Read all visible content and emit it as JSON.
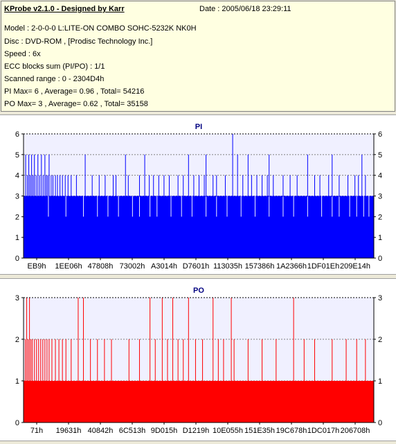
{
  "header": {
    "title": "KProbe v2.1.0 - Designed by Karr",
    "date": "Date : 2005/06/18 23:29:11",
    "lines": [
      "Model : 2-0-0-0 L:LITE-ON COMBO SOHC-5232K NK0H",
      "Disc : DVD-ROM ,  [Prodisc Technology Inc.]",
      "Speed : 6x",
      "ECC blocks sum (PI/PO) : 1/1",
      "Scanned range : 0 - 2304D4h",
      "PI Max= 6 , Average= 0.96 , Total= 54216",
      "PO Max= 3 , Average= 0.62 , Total= 35158"
    ]
  },
  "colors": {
    "plot_bg": "#f0f0ff",
    "pi_fill": "#0000ff",
    "po_fill": "#ff0000",
    "title": "#000080",
    "grid": "#808080"
  },
  "chart_data": [
    {
      "type": "bar",
      "title": "PI",
      "ylim": [
        0,
        6
      ],
      "yticks": [
        0,
        1,
        2,
        3,
        4,
        5,
        6
      ],
      "xtick_labels": [
        "EB9h",
        "1EE06h",
        "47808h",
        "73002h",
        "A3014h",
        "D7601h",
        "113035h",
        "157386h",
        "1A2366h",
        "1DF01Eh",
        "209E14h"
      ],
      "grid": true,
      "baseline": 3,
      "spikes": [
        {
          "x": 0.005,
          "v": 5
        },
        {
          "x": 0.01,
          "v": 4
        },
        {
          "x": 0.014,
          "v": 5
        },
        {
          "x": 0.018,
          "v": 4
        },
        {
          "x": 0.022,
          "v": 5
        },
        {
          "x": 0.026,
          "v": 4
        },
        {
          "x": 0.03,
          "v": 5
        },
        {
          "x": 0.035,
          "v": 4
        },
        {
          "x": 0.04,
          "v": 5
        },
        {
          "x": 0.045,
          "v": 4
        },
        {
          "x": 0.05,
          "v": 5
        },
        {
          "x": 0.055,
          "v": 4
        },
        {
          "x": 0.06,
          "v": 5
        },
        {
          "x": 0.064,
          "v": 4
        },
        {
          "x": 0.068,
          "v": 4
        },
        {
          "x": 0.072,
          "v": 5
        },
        {
          "x": 0.078,
          "v": 4
        },
        {
          "x": 0.083,
          "v": 4
        },
        {
          "x": 0.09,
          "v": 4
        },
        {
          "x": 0.096,
          "v": 4
        },
        {
          "x": 0.103,
          "v": 4
        },
        {
          "x": 0.11,
          "v": 4
        },
        {
          "x": 0.118,
          "v": 4
        },
        {
          "x": 0.126,
          "v": 4
        },
        {
          "x": 0.135,
          "v": 4
        },
        {
          "x": 0.15,
          "v": 4
        },
        {
          "x": 0.175,
          "v": 5
        },
        {
          "x": 0.195,
          "v": 4
        },
        {
          "x": 0.215,
          "v": 4
        },
        {
          "x": 0.232,
          "v": 4
        },
        {
          "x": 0.255,
          "v": 4
        },
        {
          "x": 0.263,
          "v": 4
        },
        {
          "x": 0.29,
          "v": 5
        },
        {
          "x": 0.298,
          "v": 4
        },
        {
          "x": 0.33,
          "v": 4
        },
        {
          "x": 0.345,
          "v": 5
        },
        {
          "x": 0.358,
          "v": 4
        },
        {
          "x": 0.37,
          "v": 4
        },
        {
          "x": 0.385,
          "v": 4
        },
        {
          "x": 0.4,
          "v": 4
        },
        {
          "x": 0.415,
          "v": 4
        },
        {
          "x": 0.44,
          "v": 4
        },
        {
          "x": 0.455,
          "v": 4
        },
        {
          "x": 0.47,
          "v": 5
        },
        {
          "x": 0.485,
          "v": 4
        },
        {
          "x": 0.5,
          "v": 4
        },
        {
          "x": 0.515,
          "v": 4
        },
        {
          "x": 0.52,
          "v": 5
        },
        {
          "x": 0.54,
          "v": 4
        },
        {
          "x": 0.55,
          "v": 4
        },
        {
          "x": 0.575,
          "v": 4
        },
        {
          "x": 0.596,
          "v": 6
        },
        {
          "x": 0.61,
          "v": 5
        },
        {
          "x": 0.625,
          "v": 4
        },
        {
          "x": 0.64,
          "v": 5
        },
        {
          "x": 0.65,
          "v": 4
        },
        {
          "x": 0.665,
          "v": 4
        },
        {
          "x": 0.68,
          "v": 4
        },
        {
          "x": 0.695,
          "v": 4
        },
        {
          "x": 0.7,
          "v": 5
        },
        {
          "x": 0.712,
          "v": 4
        },
        {
          "x": 0.74,
          "v": 4
        },
        {
          "x": 0.76,
          "v": 4
        },
        {
          "x": 0.78,
          "v": 4
        },
        {
          "x": 0.81,
          "v": 5
        },
        {
          "x": 0.83,
          "v": 4
        },
        {
          "x": 0.845,
          "v": 4
        },
        {
          "x": 0.87,
          "v": 4
        },
        {
          "x": 0.88,
          "v": 5
        },
        {
          "x": 0.9,
          "v": 4
        },
        {
          "x": 0.925,
          "v": 4
        },
        {
          "x": 0.945,
          "v": 4
        },
        {
          "x": 0.955,
          "v": 4
        },
        {
          "x": 0.965,
          "v": 5
        },
        {
          "x": 0.975,
          "v": 4
        }
      ],
      "dips": [
        0.07,
        0.12,
        0.17,
        0.21,
        0.24,
        0.27,
        0.31,
        0.33,
        0.36,
        0.38,
        0.42,
        0.45,
        0.48,
        0.52,
        0.55,
        0.58,
        0.62,
        0.66,
        0.7,
        0.74,
        0.77,
        0.81,
        0.85,
        0.88,
        0.9,
        0.93,
        0.95,
        0.97,
        0.985
      ]
    },
    {
      "type": "bar",
      "title": "PO",
      "ylim": [
        0,
        3
      ],
      "yticks": [
        0,
        1,
        2,
        3
      ],
      "xtick_labels": [
        "71h",
        "19631h",
        "40842h",
        "6C513h",
        "9D015h",
        "D1219h",
        "10E055h",
        "151E35h",
        "19C678h",
        "1DC017h",
        "206708h"
      ],
      "grid": true,
      "baseline": 1,
      "spikes": [
        {
          "x": 0.004,
          "v": 2
        },
        {
          "x": 0.008,
          "v": 3
        },
        {
          "x": 0.012,
          "v": 2
        },
        {
          "x": 0.016,
          "v": 3
        },
        {
          "x": 0.02,
          "v": 2
        },
        {
          "x": 0.024,
          "v": 2
        },
        {
          "x": 0.03,
          "v": 2
        },
        {
          "x": 0.036,
          "v": 2
        },
        {
          "x": 0.042,
          "v": 2
        },
        {
          "x": 0.048,
          "v": 2
        },
        {
          "x": 0.054,
          "v": 2
        },
        {
          "x": 0.06,
          "v": 2
        },
        {
          "x": 0.066,
          "v": 2
        },
        {
          "x": 0.072,
          "v": 2
        },
        {
          "x": 0.08,
          "v": 2
        },
        {
          "x": 0.09,
          "v": 2
        },
        {
          "x": 0.1,
          "v": 2
        },
        {
          "x": 0.11,
          "v": 2
        },
        {
          "x": 0.12,
          "v": 2
        },
        {
          "x": 0.135,
          "v": 2
        },
        {
          "x": 0.155,
          "v": 3
        },
        {
          "x": 0.17,
          "v": 3
        },
        {
          "x": 0.19,
          "v": 2
        },
        {
          "x": 0.21,
          "v": 2
        },
        {
          "x": 0.23,
          "v": 2
        },
        {
          "x": 0.25,
          "v": 2
        },
        {
          "x": 0.3,
          "v": 2
        },
        {
          "x": 0.33,
          "v": 2
        },
        {
          "x": 0.36,
          "v": 3
        },
        {
          "x": 0.375,
          "v": 2
        },
        {
          "x": 0.395,
          "v": 3
        },
        {
          "x": 0.41,
          "v": 2
        },
        {
          "x": 0.425,
          "v": 3
        },
        {
          "x": 0.44,
          "v": 2
        },
        {
          "x": 0.455,
          "v": 2
        },
        {
          "x": 0.47,
          "v": 3
        },
        {
          "x": 0.49,
          "v": 2
        },
        {
          "x": 0.51,
          "v": 2
        },
        {
          "x": 0.54,
          "v": 3
        },
        {
          "x": 0.555,
          "v": 2
        },
        {
          "x": 0.57,
          "v": 2
        },
        {
          "x": 0.592,
          "v": 3
        },
        {
          "x": 0.6,
          "v": 2
        },
        {
          "x": 0.64,
          "v": 2
        },
        {
          "x": 0.68,
          "v": 2
        },
        {
          "x": 0.72,
          "v": 2
        },
        {
          "x": 0.77,
          "v": 3
        },
        {
          "x": 0.8,
          "v": 2
        },
        {
          "x": 0.83,
          "v": 2
        },
        {
          "x": 0.88,
          "v": 2
        },
        {
          "x": 0.92,
          "v": 2
        },
        {
          "x": 0.95,
          "v": 2
        },
        {
          "x": 0.975,
          "v": 2
        }
      ],
      "dips": []
    }
  ]
}
